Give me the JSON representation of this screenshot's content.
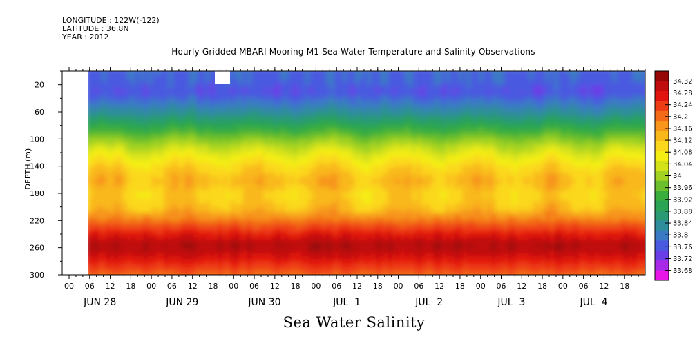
{
  "header": {
    "longitude": "LONGITUDE : 122W(-122)",
    "latitude": "LATITUDE : 36.8N",
    "year": "YEAR : 2012"
  },
  "title": "Hourly Gridded MBARI Mooring M1 Sea Water Temperature and Salinity Observations",
  "footer_title": "Sea Water Salinity",
  "chart_data": {
    "type": "heatmap",
    "title": "Hourly Gridded MBARI Mooring M1 Sea Water Temperature and Salinity Observations",
    "variable": "Sea Water Salinity",
    "ylabel": "DEPTH (m)",
    "y_reversed": true,
    "ylim": [
      300,
      0
    ],
    "y_ticks": [
      20,
      60,
      100,
      140,
      180,
      220,
      260,
      300
    ],
    "x_hour_ticks": [
      "00",
      "06",
      "12",
      "18",
      "00",
      "06",
      "12",
      "18",
      "00",
      "06",
      "12",
      "18",
      "00",
      "06",
      "12",
      "18",
      "00",
      "06",
      "12",
      "18",
      "00",
      "06",
      "12",
      "18",
      "00",
      "06",
      "12",
      "18"
    ],
    "x_day_labels": [
      "JUN 28",
      "JUN 29",
      "JUN 30",
      "JUL  1",
      "JUL  2",
      "JUL  3",
      "JUL  4"
    ],
    "xlim": [
      "2012-06-28 00:00",
      "2012-07-04 23:00"
    ],
    "data_start": "2012-06-28 06:00",
    "colorbar": {
      "labels": [
        "34.32",
        "34.28",
        "34.24",
        "34.2",
        "34.16",
        "34.12",
        "34.08",
        "34.04",
        "34",
        "33.96",
        "33.92",
        "33.88",
        "33.84",
        "33.8",
        "33.76",
        "33.72",
        "33.68"
      ],
      "range": [
        33.68,
        34.34
      ],
      "colors": [
        "#e817e8",
        "#a82ae8",
        "#6a3ee6",
        "#4a5ae0",
        "#3a7ac4",
        "#2e8d9c",
        "#2a9a74",
        "#2ca455",
        "#3aae3c",
        "#6cbf2c",
        "#a2d222",
        "#d4e21a",
        "#f4ee12",
        "#fbd81c",
        "#f9b81a",
        "#f7961a",
        "#f36a17",
        "#ee3c14",
        "#e21410",
        "#c00c0c",
        "#960808"
      ]
    },
    "depth_profile": [
      {
        "depth": 10,
        "value": 33.8
      },
      {
        "depth": 30,
        "value": 33.78
      },
      {
        "depth": 60,
        "value": 33.86
      },
      {
        "depth": 80,
        "value": 33.93
      },
      {
        "depth": 100,
        "value": 34.0
      },
      {
        "depth": 120,
        "value": 34.06
      },
      {
        "depth": 140,
        "value": 34.11
      },
      {
        "depth": 160,
        "value": 34.14
      },
      {
        "depth": 180,
        "value": 34.11
      },
      {
        "depth": 200,
        "value": 34.13
      },
      {
        "depth": 220,
        "value": 34.2
      },
      {
        "depth": 240,
        "value": 34.27
      },
      {
        "depth": 255,
        "value": 34.31
      },
      {
        "depth": 270,
        "value": 34.28
      },
      {
        "depth": 285,
        "value": 34.24
      },
      {
        "depth": 300,
        "value": 34.2
      }
    ]
  }
}
